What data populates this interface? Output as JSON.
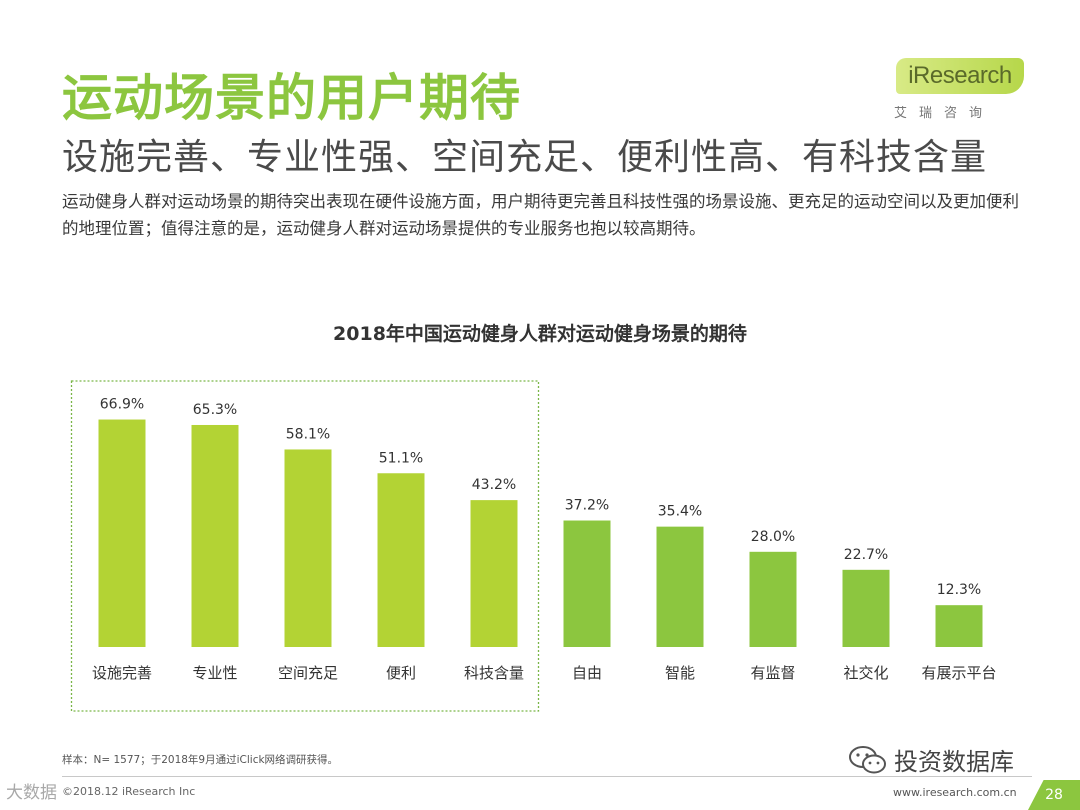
{
  "header": {
    "title": "运动场景的用户期待",
    "subtitle": "设施完善、专业性强、空间充足、便利性高、有科技含量",
    "intro": "运动健身人群对运动场景的期待突出表现在硬件设施方面，用户期待更完善且科技性强的场景设施、更充足的运动空间以及更加便利的地理位置；值得注意的是，运动健身人群对运动场景提供的专业服务也抱以较高期待。"
  },
  "logo": {
    "brand": "iResearch",
    "cn": "艾瑞咨询"
  },
  "colors": {
    "accent": "#8cc63f",
    "bar_highlight": "#b3d334",
    "bar_default": "#8cc63f",
    "frame": "#7ab648"
  },
  "chart_data": {
    "type": "bar",
    "title": "2018年中国运动健身人群对运动健身场景的期待",
    "categories": [
      "设施完善",
      "专业性",
      "空间充足",
      "便利",
      "科技含量",
      "自由",
      "智能",
      "有监督",
      "社交化",
      "有展示平台"
    ],
    "values": [
      66.9,
      65.3,
      58.1,
      51.1,
      43.2,
      37.2,
      35.4,
      28.0,
      22.7,
      12.3
    ],
    "value_labels": [
      "66.9%",
      "65.3%",
      "58.1%",
      "51.1%",
      "43.2%",
      "37.2%",
      "35.4%",
      "28.0%",
      "22.7%",
      "12.3%"
    ],
    "highlighted_count": 5,
    "unit": "%",
    "xlabel": "",
    "ylabel": "",
    "ylim": [
      0,
      70
    ]
  },
  "footer": {
    "note": "样本：N= 1577；于2018年9月通过iClick网络调研获得。",
    "copyright": "©2018.12 iResearch Inc",
    "url": "www.iresearch.com.cn",
    "page": "28",
    "wechat_label": "投资数据库",
    "watermark": "大数据"
  }
}
